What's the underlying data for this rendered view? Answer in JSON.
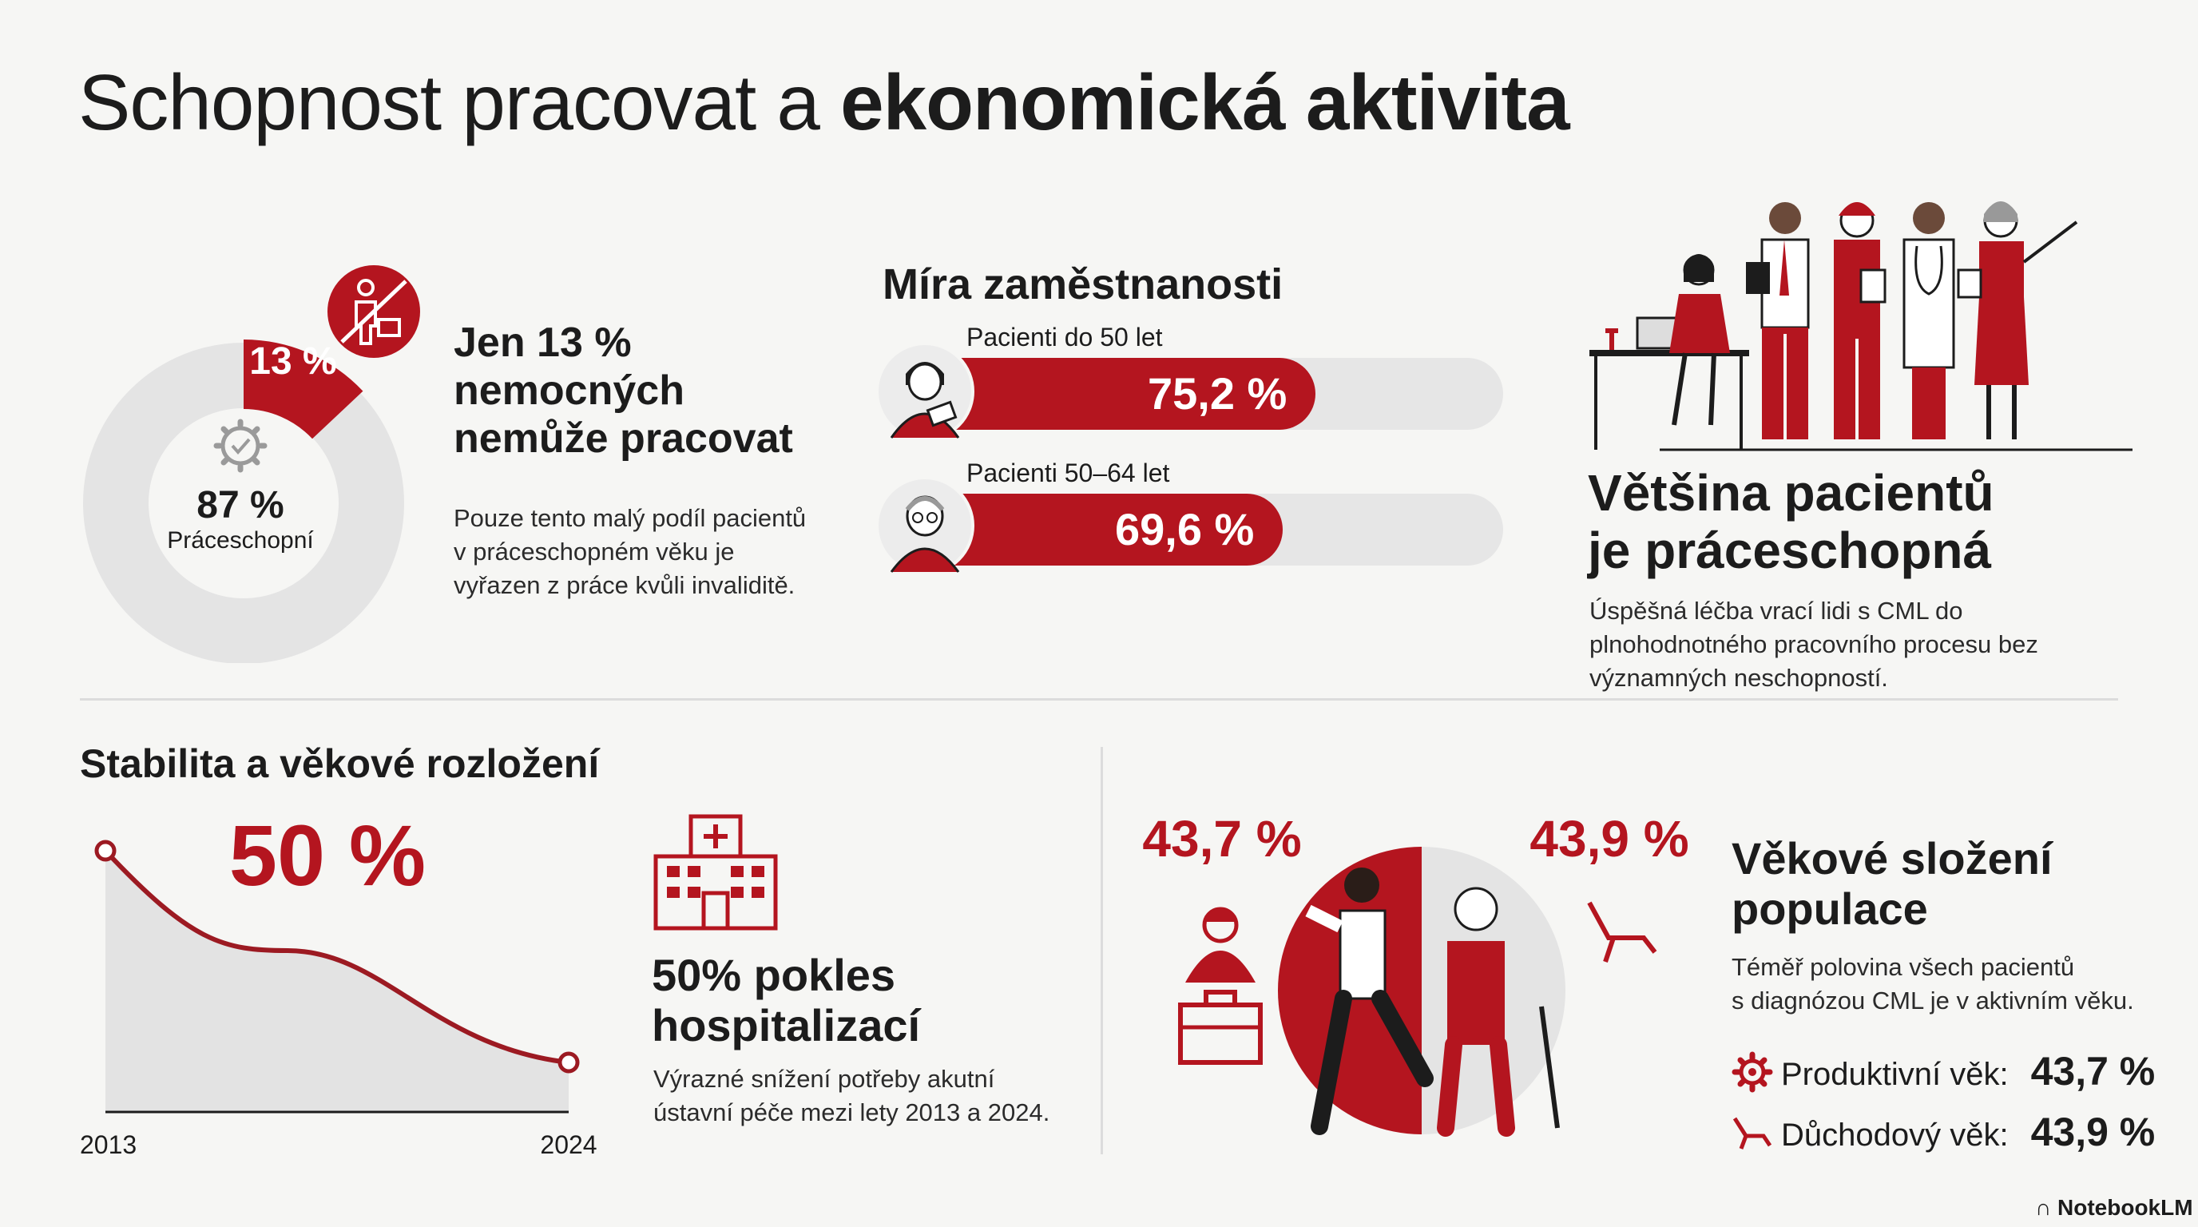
{
  "title": {
    "regular": "Schopnost pracovat a ",
    "bold": "ekonomická aktivita"
  },
  "inability": {
    "donut_label_pct": "13 %",
    "center_value": "87 %",
    "center_label": "Práceschopní",
    "heading": "Jen 13 % nemocných nemůže pracovat",
    "text": "Pouze tento malý podíl pacientů v práceschopném věku je vyřazen z práce kvůli invaliditě."
  },
  "employment": {
    "heading": "Míra zaměstnanosti",
    "rows": [
      {
        "label": "Pacienti do 50 let",
        "value_text": "75,2 %"
      },
      {
        "label": "Pacienti 50–64 let",
        "value_text": "69,6 %"
      }
    ]
  },
  "workers": {
    "heading_line1": "Většina pacientů",
    "heading_line2": "je práceschopná",
    "text": "Úspěšná léčba vrací lidi s CML do plnohodnotného pracovního procesu bez významných neschopností."
  },
  "stability": {
    "heading": "Stabilita a věkové rozložení",
    "big_value": "50 %",
    "x_start": "2013",
    "x_end": "2024",
    "hosp_heading_line1": "50% pokles",
    "hosp_heading_line2": "hospitalizací",
    "hosp_text_line1": "Výrazné snížení potřeby akutní",
    "hosp_text_line2": "ústavní péče mezi lety 2013 a 2024."
  },
  "age": {
    "left_pct": "43,7 %",
    "right_pct": "43,9 %",
    "heading_line1": "Věkové složení",
    "heading_line2": "populace",
    "text_line1": "Téměř polovina všech pacientů",
    "text_line2": "s diagnózou CML je v aktivním věku.",
    "productive_label": "Produktivní věk:",
    "productive_value": "43,7 %",
    "retirement_label": "Důchodový věk:",
    "retirement_value": "43,9 %"
  },
  "footer": {
    "brand": "NotebookLM"
  },
  "colors": {
    "accent": "#b4151f",
    "track": "#e6e6e6",
    "text": "#1c1c1c",
    "bg": "#f6f6f4"
  },
  "chart_data": [
    {
      "type": "pie",
      "labels": [
        "Nemohou pracovat",
        "Práceschopní"
      ],
      "values": [
        13,
        87
      ],
      "unit": "%"
    },
    {
      "type": "bar",
      "orientation": "horizontal",
      "title": "Míra zaměstnanosti",
      "categories": [
        "Pacienti do 50 let",
        "Pacienti 50–64 let"
      ],
      "values": [
        75.2,
        69.6
      ],
      "unit": "%",
      "xlim": [
        0,
        100
      ]
    },
    {
      "type": "area",
      "x": [
        2013,
        2024
      ],
      "y_relative": [
        100,
        50
      ],
      "unit": "%",
      "annotation": "50 %"
    },
    {
      "type": "pie",
      "labels": [
        "Produktivní věk",
        "Důchodový věk"
      ],
      "values": [
        43.7,
        43.9
      ],
      "unit": "%"
    }
  ]
}
